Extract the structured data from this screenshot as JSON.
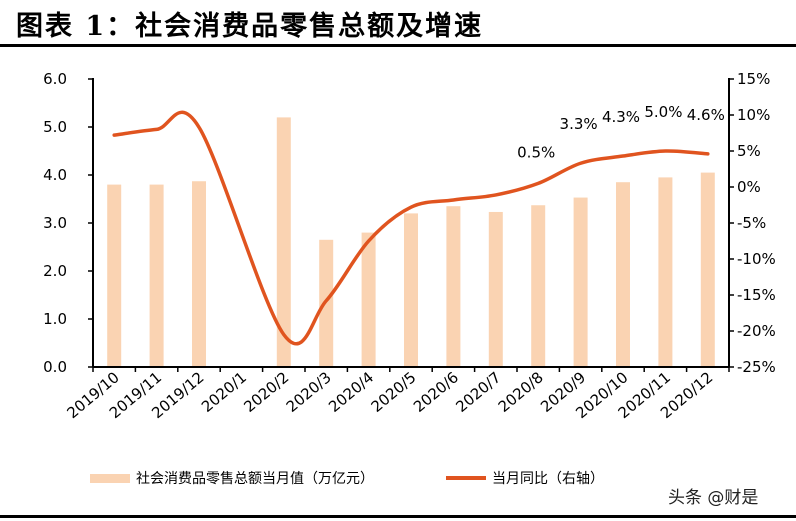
{
  "title": "图表 1：社会消费品零售总额及增速",
  "watermark": "头条 @财是",
  "chart_data": {
    "type": "bar+line",
    "categories": [
      "2019/10",
      "2019/11",
      "2019/12",
      "2020/1",
      "2020/2",
      "2020/3",
      "2020/4",
      "2020/5",
      "2020/6",
      "2020/7",
      "2020/8",
      "2020/9",
      "2020/10",
      "2020/11",
      "2020/12"
    ],
    "series": [
      {
        "name": "社会消费品零售总额当月值（万亿元）",
        "type": "bar",
        "axis": "left",
        "color": "#FAD3B2",
        "values": [
          3.8,
          3.8,
          3.87,
          null,
          5.2,
          2.65,
          2.8,
          3.2,
          3.35,
          3.23,
          3.37,
          3.53,
          3.85,
          3.95,
          4.05
        ]
      },
      {
        "name": "当月同比（右轴）",
        "type": "line",
        "axis": "right",
        "color": "#E0541F",
        "values": [
          7.2,
          8.0,
          8.3,
          null,
          -20.5,
          -15.8,
          -7.5,
          -2.8,
          -1.8,
          -1.1,
          0.5,
          3.3,
          4.3,
          5.0,
          4.6
        ]
      }
    ],
    "data_labels": [
      {
        "category": "2020/8",
        "text": "0.5%"
      },
      {
        "category": "2020/9",
        "text": "3.3%"
      },
      {
        "category": "2020/10",
        "text": "4.3%"
      },
      {
        "category": "2020/11",
        "text": "5.0%"
      },
      {
        "category": "2020/12",
        "text": "4.6%"
      }
    ],
    "left_axis": {
      "ylim": [
        0,
        6
      ],
      "ticks": [
        "0.0",
        "1.0",
        "2.0",
        "3.0",
        "4.0",
        "5.0",
        "6.0"
      ]
    },
    "right_axis": {
      "ylim": [
        -25,
        15
      ],
      "ticks": [
        "-25%",
        "-20%",
        "-15%",
        "-10%",
        "-5%",
        "0%",
        "5%",
        "10%",
        "15%"
      ]
    },
    "grid": false,
    "legend": "bottom"
  }
}
